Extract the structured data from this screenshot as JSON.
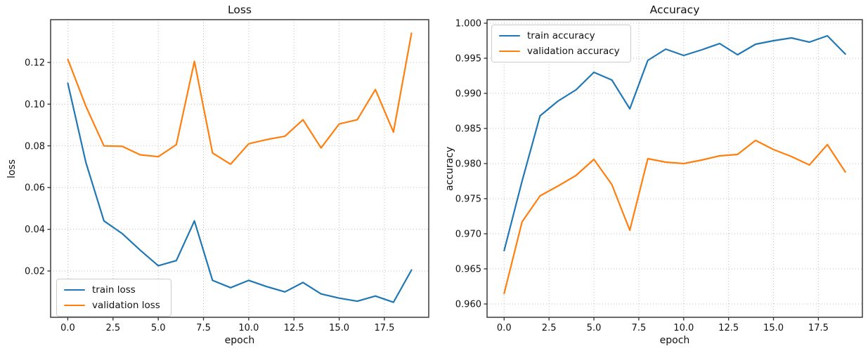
{
  "figure": {
    "background": "#ffffff"
  },
  "colors": {
    "train": "#1f77b4",
    "validation": "#ff7f0e",
    "grid": "#bdbdbd",
    "spine": "#2e2e2e",
    "tick": "#2e2e2e",
    "text": "#111111"
  },
  "chart_data": [
    {
      "type": "line",
      "title": "Loss",
      "xlabel": "epoch",
      "ylabel": "loss",
      "grid": true,
      "legend_position": "lower left",
      "x": [
        0,
        1,
        2,
        3,
        4,
        5,
        6,
        7,
        8,
        9,
        10,
        11,
        12,
        13,
        14,
        15,
        16,
        17,
        18,
        19
      ],
      "series": [
        {
          "name": "train loss",
          "color": "#1f77b4",
          "values": [
            0.11,
            0.072,
            0.044,
            0.038,
            0.03,
            0.0225,
            0.025,
            0.044,
            0.0155,
            0.012,
            0.0155,
            0.0125,
            0.01,
            0.0145,
            0.009,
            0.007,
            0.0055,
            0.008,
            0.005,
            0.0205
          ]
        },
        {
          "name": "validation loss",
          "color": "#ff7f0e",
          "values": [
            0.1215,
            0.099,
            0.08,
            0.0798,
            0.0757,
            0.0748,
            0.0806,
            0.1205,
            0.0766,
            0.0712,
            0.081,
            0.083,
            0.0846,
            0.0925,
            0.079,
            0.0905,
            0.0925,
            0.107,
            0.0866,
            0.134
          ]
        }
      ],
      "xlim": [
        -0.95,
        19.95
      ],
      "ylim": [
        -0.0022,
        0.1405
      ],
      "xticks": [
        0,
        2.5,
        5,
        7.5,
        10,
        12.5,
        15,
        17.5
      ],
      "xtick_labels": [
        "0.0",
        "2.5",
        "5.0",
        "7.5",
        "10.0",
        "12.5",
        "15.0",
        "17.5"
      ],
      "yticks": [
        0.02,
        0.04,
        0.06,
        0.08,
        0.1,
        0.12
      ],
      "ytick_labels": [
        "0.02",
        "0.04",
        "0.06",
        "0.08",
        "0.10",
        "0.12"
      ]
    },
    {
      "type": "line",
      "title": "Accuracy",
      "xlabel": "epoch",
      "ylabel": "accuracy",
      "grid": true,
      "legend_position": "upper left",
      "x": [
        0,
        1,
        2,
        3,
        4,
        5,
        6,
        7,
        8,
        9,
        10,
        11,
        12,
        13,
        14,
        15,
        16,
        17,
        18,
        19
      ],
      "series": [
        {
          "name": "train accuracy",
          "color": "#1f77b4",
          "values": [
            0.9676,
            0.9775,
            0.9868,
            0.9889,
            0.9905,
            0.993,
            0.9919,
            0.9878,
            0.9947,
            0.9963,
            0.9954,
            0.9962,
            0.9971,
            0.9955,
            0.997,
            0.9975,
            0.9979,
            0.9973,
            0.9982,
            0.9956
          ]
        },
        {
          "name": "validation accuracy",
          "color": "#ff7f0e",
          "values": [
            0.9615,
            0.9717,
            0.9754,
            0.9768,
            0.9783,
            0.9806,
            0.977,
            0.9705,
            0.9807,
            0.9802,
            0.98,
            0.9805,
            0.9811,
            0.9813,
            0.9833,
            0.982,
            0.981,
            0.9798,
            0.9827,
            0.9788
          ]
        }
      ],
      "xlim": [
        -0.95,
        19.95
      ],
      "ylim": [
        0.9581,
        1.0005
      ],
      "xticks": [
        0,
        2.5,
        5,
        7.5,
        10,
        12.5,
        15,
        17.5
      ],
      "xtick_labels": [
        "0.0",
        "2.5",
        "5.0",
        "7.5",
        "10.0",
        "12.5",
        "15.0",
        "17.5"
      ],
      "yticks": [
        0.96,
        0.965,
        0.97,
        0.975,
        0.98,
        0.985,
        0.99,
        0.995,
        1.0
      ],
      "ytick_labels": [
        "0.960",
        "0.965",
        "0.970",
        "0.975",
        "0.980",
        "0.985",
        "0.990",
        "0.995",
        "1.000"
      ]
    }
  ]
}
